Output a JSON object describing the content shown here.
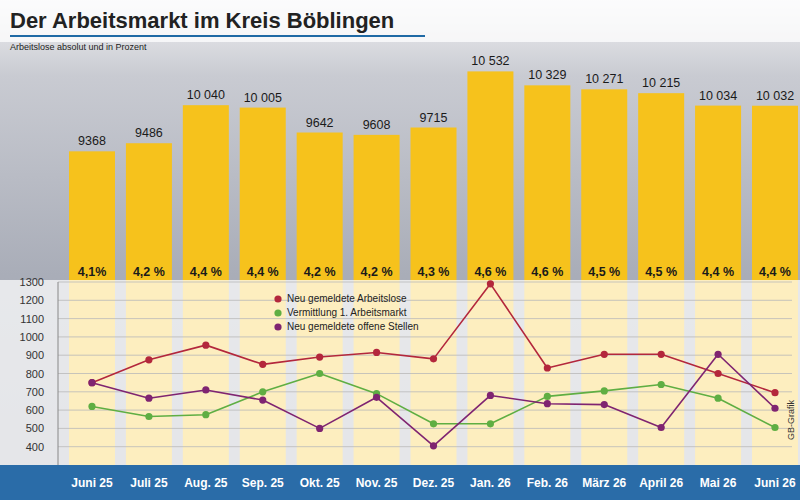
{
  "chart_data": [
    {
      "type": "bar",
      "title": "Der Arbeitsmarkt im Kreis Böblingen",
      "subtitle": "Arbeitslose absolut und in Prozent",
      "categories": [
        "Juni 25",
        "Juli 25",
        "Aug. 25",
        "Sep. 25",
        "Okt. 25",
        "Nov. 25",
        "Dez. 25",
        "Jan. 26",
        "Feb. 26",
        "März 26",
        "April 26",
        "Mai 26",
        "Juni 26"
      ],
      "values": [
        9368,
        9486,
        10040,
        10005,
        9642,
        9608,
        9715,
        10532,
        10329,
        10271,
        10215,
        10034,
        10032
      ],
      "value_labels": [
        "9368",
        "9486",
        "10 040",
        "10 005",
        "9642",
        "9608",
        "9715",
        "10 532",
        "10 329",
        "10 271",
        "10 215",
        "10 034",
        "10 032"
      ],
      "rates": [
        4.1,
        4.2,
        4.4,
        4.4,
        4.2,
        4.2,
        4.3,
        4.6,
        4.6,
        4.5,
        4.5,
        4.4,
        4.4
      ],
      "rate_labels": [
        "4,1%",
        "4,2 %",
        "4,4 %",
        "4,4 %",
        "4,2 %",
        "4,2 %",
        "4,3 %",
        "4,6 %",
        "4,6 %",
        "4,5 %",
        "4,5 %",
        "4,4 %",
        "4,4 %"
      ],
      "color": "#f6c21c",
      "ylim": [
        4800,
        10800
      ],
      "data_labels": true,
      "tick_labels": "x",
      "grid": false
    },
    {
      "type": "line",
      "categories": [
        "Juni 25",
        "Juli 25",
        "Aug. 25",
        "Sep. 25",
        "Okt. 25",
        "Nov. 25",
        "Dez. 25",
        "Jan. 26",
        "Feb. 26",
        "März 26",
        "April 26",
        "Mai 26",
        "Juni 26"
      ],
      "series": [
        {
          "name": "Neu gemeldete Arbeitslose",
          "color": "#b3273c",
          "marker": "circle",
          "values": [
            750,
            875,
            955,
            850,
            890,
            915,
            880,
            1290,
            830,
            905,
            905,
            800,
            695
          ]
        },
        {
          "name": "Vermittlung 1. Arbeitsmarkt",
          "color": "#5fae43",
          "marker": "circle",
          "values": [
            620,
            565,
            575,
            700,
            800,
            690,
            525,
            525,
            675,
            705,
            740,
            665,
            505
          ]
        },
        {
          "name": "Neu gemeldete offene Stellen",
          "color": "#7f2471",
          "marker": "circle",
          "values": [
            750,
            665,
            710,
            655,
            500,
            670,
            405,
            680,
            635,
            630,
            505,
            905,
            610
          ]
        }
      ],
      "ylim": [
        300,
        1300
      ],
      "yticks": [
        400,
        500,
        600,
        700,
        800,
        900,
        1000,
        1100,
        1200,
        1300
      ],
      "grid": true,
      "legend": "top",
      "annotations": [
        "GB-Grafik"
      ]
    }
  ]
}
